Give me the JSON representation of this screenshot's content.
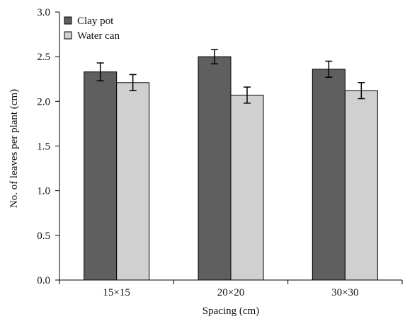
{
  "chart_data": {
    "type": "bar",
    "title": "",
    "xlabel": "Spacing (cm)",
    "ylabel": "No. of leaves per plant (cm)",
    "categories": [
      "15×15",
      "20×20",
      "30×30"
    ],
    "ylim": [
      0,
      3.0
    ],
    "yticks": [
      "0.0",
      "0.5",
      "1.0",
      "1.5",
      "2.0",
      "2.5",
      "3.0"
    ],
    "grid": false,
    "legend_position": "top-left",
    "series": [
      {
        "name": "Clay pot",
        "color": "#5f5f5f",
        "values": [
          2.33,
          2.5,
          2.36
        ],
        "errors": [
          0.1,
          0.08,
          0.09
        ]
      },
      {
        "name": "Water can",
        "color": "#d0d0d0",
        "values": [
          2.21,
          2.07,
          2.12
        ],
        "errors": [
          0.09,
          0.09,
          0.09
        ]
      }
    ]
  }
}
